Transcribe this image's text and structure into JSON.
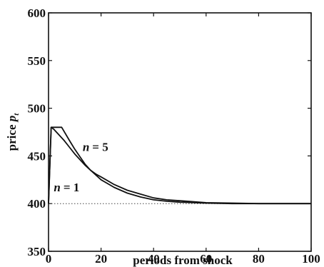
{
  "chart_data": {
    "type": "line",
    "title": "",
    "xlabel": "periods from shock",
    "ylabel_main": "price",
    "ylabel_var": "p",
    "ylabel_sub": "t",
    "xlim": [
      0,
      100
    ],
    "ylim": [
      350,
      600
    ],
    "xticks": [
      0,
      20,
      40,
      60,
      80,
      100
    ],
    "yticks": [
      350,
      400,
      450,
      500,
      550,
      600
    ],
    "grid": false,
    "series": [
      {
        "name": "n = 1",
        "x": [
          0,
          1,
          2,
          4,
          6,
          8,
          10,
          12,
          14,
          16,
          18,
          20,
          25,
          30,
          35,
          40,
          45,
          50,
          60,
          70,
          80,
          90,
          100
        ],
        "y": [
          400,
          480,
          478,
          472,
          466,
          459,
          452,
          446,
          440,
          435,
          431,
          428,
          420,
          414,
          410,
          406,
          404,
          403,
          401,
          400.5,
          400,
          400,
          400
        ]
      },
      {
        "name": "n = 5",
        "x": [
          0,
          1,
          5,
          8,
          10,
          12,
          14,
          16,
          18,
          20,
          25,
          30,
          35,
          40,
          45,
          50,
          60,
          70,
          80,
          90,
          100
        ],
        "y": [
          400,
          480,
          480,
          466,
          457,
          449,
          441,
          435,
          430,
          425,
          417,
          411,
          407,
          404,
          402.5,
          401.5,
          400.5,
          400,
          400,
          400,
          400
        ]
      }
    ],
    "reference_line": {
      "y": 400,
      "style": "dotted"
    },
    "annotations": [
      {
        "var": "n",
        "eq": "= 5",
        "x": 13,
        "y": 455
      },
      {
        "var": "n",
        "eq": "= 1",
        "x": 2,
        "y": 413
      }
    ]
  }
}
